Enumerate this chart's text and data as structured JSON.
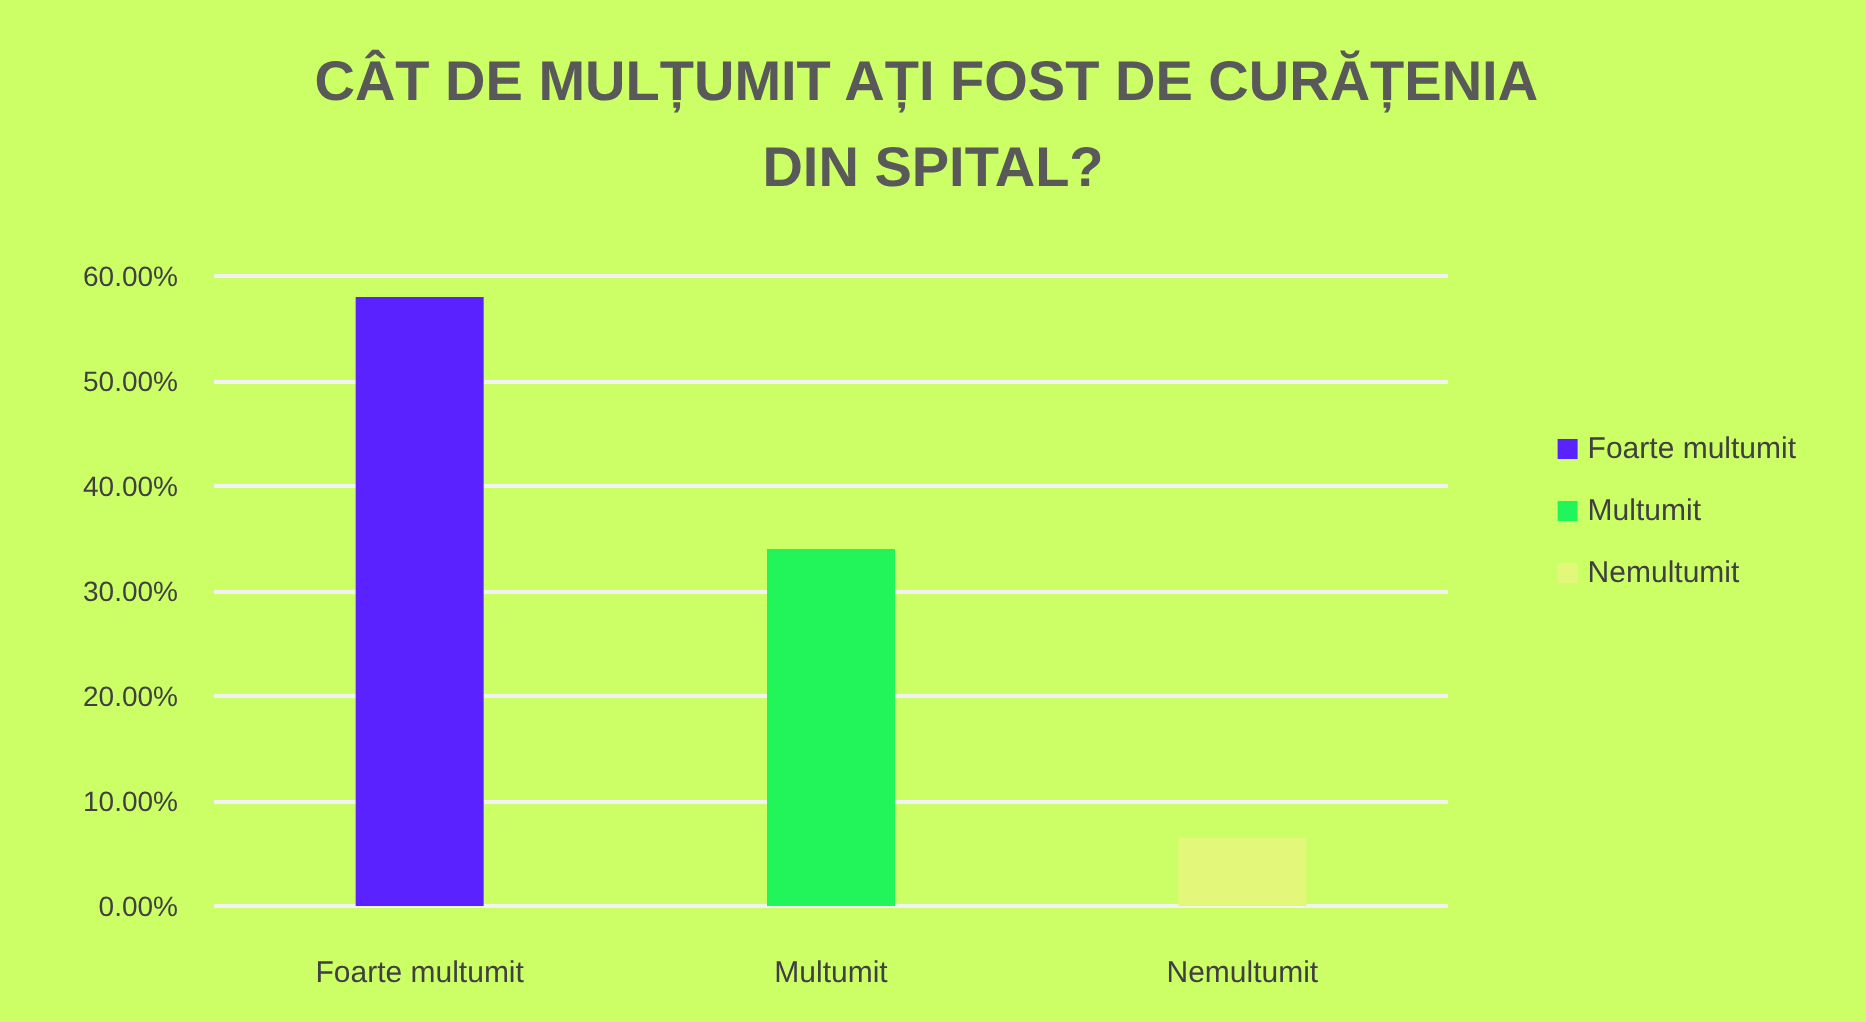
{
  "chart_data": {
    "type": "bar",
    "title": "CÂT DE MULȚUMIT AȚI FOST DE CURĂȚENIA DIN SPITAL?",
    "categories": [
      "Foarte multumit",
      "Multumit",
      "Nemultumit"
    ],
    "series": [
      {
        "name": "Foarte multumit",
        "color": "#5a22ff",
        "values": [
          58,
          null,
          null
        ]
      },
      {
        "name": "Multumit",
        "color": "#22f55a",
        "values": [
          null,
          34,
          null
        ]
      },
      {
        "name": "Nemultumit",
        "color": "#e3f77a",
        "values": [
          null,
          null,
          6.5
        ]
      }
    ],
    "ylim": [
      0,
      60
    ],
    "yticks": [
      {
        "value": 0,
        "label": "0.00%"
      },
      {
        "value": 10,
        "label": "10.00%"
      },
      {
        "value": 20,
        "label": "20.00%"
      },
      {
        "value": 30,
        "label": "30.00%"
      },
      {
        "value": 40,
        "label": "40.00%"
      },
      {
        "value": 50,
        "label": "50.00%"
      },
      {
        "value": 60,
        "label": "60.00%"
      }
    ],
    "grid": "y",
    "legend": "right"
  }
}
